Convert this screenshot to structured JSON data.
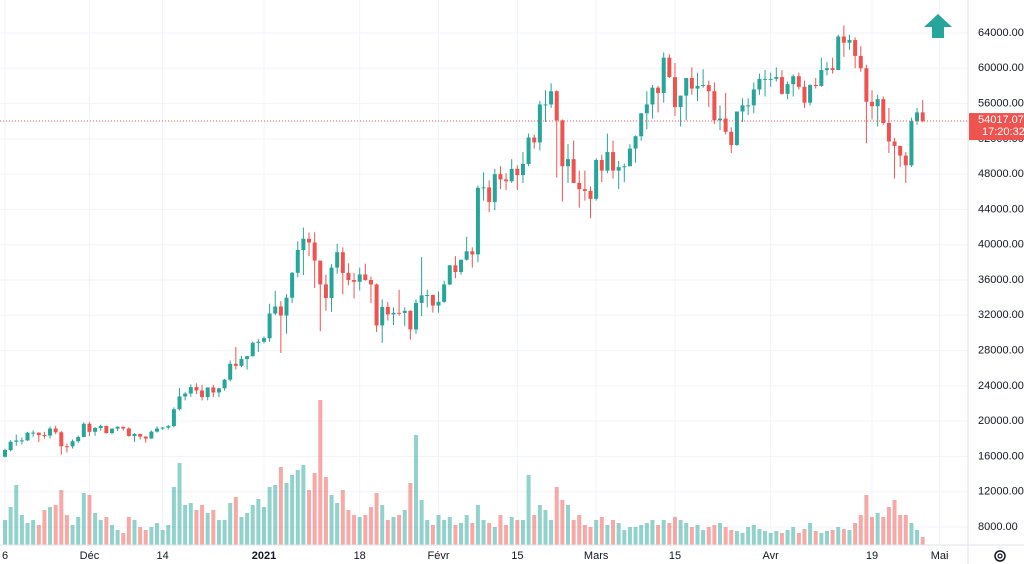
{
  "chart_data": {
    "type": "candlestick",
    "categories": [
      "6",
      null,
      null,
      null,
      null,
      null,
      null,
      null,
      null,
      null,
      null,
      null,
      null,
      null,
      null,
      "Déc",
      null,
      null,
      null,
      null,
      null,
      null,
      null,
      null,
      null,
      null,
      null,
      null,
      "14",
      null,
      null,
      null,
      null,
      null,
      null,
      null,
      null,
      null,
      null,
      null,
      null,
      null,
      null,
      null,
      null,
      null,
      "2021",
      null,
      null,
      null,
      null,
      null,
      null,
      null,
      null,
      null,
      null,
      null,
      null,
      null,
      null,
      null,
      null,
      "18",
      null,
      null,
      null,
      null,
      null,
      null,
      null,
      null,
      null,
      null,
      null,
      null,
      null,
      "Févr",
      null,
      null,
      null,
      null,
      null,
      null,
      null,
      null,
      null,
      null,
      null,
      null,
      null,
      "15",
      null,
      null,
      null,
      null,
      null,
      null,
      null,
      null,
      null,
      null,
      null,
      null,
      null,
      "Mars",
      null,
      null,
      null,
      null,
      null,
      null,
      null,
      null,
      null,
      null,
      null,
      null,
      null,
      "15",
      null,
      null,
      null,
      null,
      null,
      null,
      null,
      null,
      null,
      null,
      null,
      null,
      null,
      null,
      null,
      null,
      "Avr",
      null,
      null,
      null,
      null,
      null,
      null,
      null,
      null,
      null,
      null,
      null,
      null,
      null,
      null,
      null,
      null,
      null,
      "19",
      null,
      null,
      null,
      null,
      null,
      null,
      null,
      null,
      null,
      null,
      null,
      "Mai",
      null,
      null,
      null,
      null
    ],
    "open": [
      15960,
      16720,
      17660,
      17800,
      17820,
      18690,
      18700,
      18420,
      18370,
      19160,
      18740,
      17150,
      17140,
      17720,
      18200,
      19700,
      18790,
      19220,
      19450,
      18650,
      19150,
      19360,
      19170,
      18320,
      18550,
      18250,
      18030,
      18810,
      19160,
      19270,
      19440,
      21350,
      22800,
      23130,
      23860,
      23480,
      22730,
      23820,
      23250,
      23720,
      24700,
      26500,
      26270,
      27040,
      27360,
      28880,
      29000,
      29400,
      32200,
      33000,
      31970,
      33990,
      36820,
      39400,
      40670,
      40250,
      38200,
      35500,
      33960,
      37400,
      39150,
      36800,
      36000,
      35800,
      36630,
      36000,
      35500,
      30850,
      32950,
      32100,
      32280,
      32270,
      32500,
      30400,
      33400,
      34260,
      34300,
      33100,
      33530,
      35500,
      37660,
      36900,
      38300,
      39250,
      38900,
      46450,
      46500,
      44850,
      48000,
      47400,
      47200,
      48600,
      47900,
      49150,
      52150,
      51600,
      55900,
      55900,
      57400,
      54100,
      48900,
      49700,
      47000,
      46300,
      46100,
      45200,
      49600,
      48400,
      50500,
      48400,
      48800,
      48900,
      50900,
      52300,
      54900,
      55900,
      57800,
      57200,
      61200,
      59000,
      55600,
      56900,
      58900,
      57700,
      58000,
      58100,
      57400,
      54100,
      54300,
      52800,
      51300,
      55100,
      55800,
      55800,
      57600,
      58800,
      58800,
      58800,
      59000,
      57100,
      58200,
      59100,
      57900,
      56100,
      58100,
      58000,
      59800,
      60000,
      59800,
      63600,
      62900,
      63200,
      61400,
      60000,
      56200,
      55700,
      56500,
      53800,
      51700,
      51200,
      50100,
      49000,
      54000,
      55000,
      null,
      null,
      null,
      null,
      null,
      null,
      null
    ],
    "high": [
      16870,
      17850,
      18480,
      18150,
      18800,
      18960,
      18720,
      18790,
      19400,
      19480,
      18900,
      17470,
      17920,
      18360,
      19860,
      19920,
      19330,
      19600,
      19500,
      19170,
      19420,
      19390,
      19300,
      18640,
      18570,
      18290,
      18950,
      19410,
      19340,
      19570,
      21560,
      23770,
      23280,
      24170,
      24300,
      24100,
      23830,
      24100,
      23780,
      24800,
      26870,
      28400,
      27400,
      27390,
      29000,
      29300,
      29600,
      33300,
      34800,
      33600,
      34400,
      36900,
      40400,
      41950,
      41380,
      41400,
      38200,
      36600,
      37800,
      40100,
      39700,
      37900,
      36800,
      37400,
      37850,
      36400,
      35600,
      33800,
      33500,
      32900,
      34880,
      32900,
      32570,
      33800,
      38600,
      34900,
      34350,
      34700,
      35900,
      37700,
      38700,
      38300,
      40900,
      39700,
      46700,
      48200,
      47300,
      48600,
      48900,
      48100,
      49700,
      49000,
      50500,
      52600,
      52500,
      56300,
      57500,
      58300,
      57500,
      54200,
      51400,
      51800,
      48400,
      48400,
      46600,
      49800,
      50200,
      52600,
      51800,
      49500,
      49200,
      51400,
      52400,
      54900,
      57400,
      58100,
      58000,
      61800,
      61600,
      60600,
      56900,
      58900,
      60100,
      59500,
      59900,
      58600,
      58400,
      55800,
      57200,
      53300,
      55100,
      56600,
      56600,
      58400,
      59400,
      59800,
      59500,
      60100,
      59800,
      58500,
      59300,
      59500,
      58600,
      58200,
      58900,
      61200,
      60700,
      61200,
      63800,
      64850,
      63800,
      63500,
      62500,
      60400,
      57500,
      57000,
      56800,
      55500,
      52100,
      51200,
      50500,
      54400,
      55500,
      56400,
      null,
      null,
      null,
      null,
      null,
      null,
      null
    ],
    "low": [
      15880,
      16570,
      17220,
      17350,
      17760,
      18230,
      17620,
      18020,
      18030,
      18530,
      16200,
      16460,
      16890,
      17540,
      18180,
      18320,
      18340,
      18900,
      18580,
      18510,
      18880,
      18920,
      18230,
      17650,
      17920,
      17580,
      18010,
      18710,
      19000,
      19050,
      19300,
      21230,
      22350,
      22760,
      23080,
      22350,
      22360,
      22730,
      22720,
      23460,
      24500,
      25850,
      26100,
      25850,
      27320,
      27850,
      28800,
      29000,
      32000,
      27730,
      29900,
      33400,
      36300,
      36560,
      38700,
      35100,
      30200,
      32500,
      32400,
      36700,
      34400,
      35400,
      33900,
      34800,
      35900,
      33400,
      30100,
      28850,
      31400,
      30900,
      31950,
      30800,
      29240,
      29900,
      31900,
      32900,
      32300,
      32300,
      33400,
      35400,
      36200,
      36600,
      38200,
      37400,
      38000,
      45000,
      43700,
      43900,
      46300,
      46200,
      47000,
      46200,
      47000,
      48900,
      50900,
      50700,
      53900,
      55500,
      47600,
      44900,
      47000,
      47000,
      44200,
      45000,
      43000,
      45000,
      47100,
      48100,
      47500,
      46300,
      47100,
      48900,
      49300,
      51800,
      53100,
      54300,
      55000,
      56100,
      58900,
      54600,
      53400,
      54100,
      57000,
      56300,
      57800,
      55600,
      53700,
      53000,
      52500,
      50400,
      51200,
      53900,
      54700,
      54900,
      57000,
      56800,
      57900,
      58500,
      57000,
      56500,
      56800,
      57600,
      55500,
      55800,
      57700,
      57900,
      59200,
      59400,
      59800,
      61300,
      62100,
      60000,
      59600,
      51500,
      54200,
      53400,
      53600,
      50400,
      47500,
      48800,
      47000,
      48800,
      53600,
      53900,
      null,
      null,
      null,
      null,
      null,
      null,
      null
    ],
    "close": [
      16720,
      17660,
      17800,
      17820,
      18690,
      18700,
      18420,
      18370,
      19160,
      18740,
      17150,
      17140,
      17720,
      18200,
      19700,
      18790,
      19220,
      19450,
      18650,
      19150,
      19360,
      19170,
      18320,
      18550,
      18250,
      18030,
      18810,
      19160,
      19270,
      19440,
      21350,
      22800,
      23130,
      23860,
      23480,
      22730,
      23820,
      23250,
      23720,
      24700,
      26500,
      26270,
      27040,
      27360,
      28880,
      29000,
      29400,
      32200,
      33000,
      31970,
      33990,
      36820,
      39400,
      40670,
      40250,
      38200,
      35500,
      33960,
      37400,
      39150,
      36800,
      36000,
      35800,
      36630,
      36000,
      35500,
      30850,
      32950,
      32100,
      32280,
      32270,
      32500,
      30400,
      33400,
      34260,
      34300,
      33100,
      33530,
      35500,
      37660,
      36900,
      38300,
      39250,
      38900,
      46450,
      46500,
      44850,
      48000,
      47400,
      47200,
      48600,
      47900,
      49150,
      52150,
      51600,
      55900,
      55900,
      57400,
      54100,
      48900,
      49700,
      47000,
      46300,
      46100,
      45200,
      49600,
      48400,
      50500,
      48400,
      48800,
      48900,
      50900,
      52300,
      54900,
      55900,
      57800,
      57200,
      61200,
      59000,
      55600,
      56900,
      58900,
      57700,
      58000,
      58100,
      57400,
      54100,
      54300,
      52800,
      51300,
      55100,
      55800,
      55800,
      57600,
      58800,
      58800,
      58800,
      59000,
      57100,
      58200,
      59100,
      57900,
      56100,
      58100,
      58000,
      59800,
      60000,
      59800,
      63600,
      62900,
      63200,
      61400,
      60000,
      56200,
      55700,
      56500,
      53800,
      51700,
      51200,
      50100,
      49000,
      54000,
      55000,
      54017.07,
      null,
      null,
      null,
      null,
      null,
      null,
      null
    ],
    "volume": [
      25,
      38,
      60,
      30,
      22,
      25,
      20,
      35,
      38,
      40,
      55,
      30,
      20,
      28,
      52,
      50,
      32,
      25,
      28,
      20,
      15,
      12,
      28,
      25,
      18,
      15,
      18,
      22,
      15,
      20,
      58,
      82,
      40,
      42,
      35,
      40,
      32,
      35,
      25,
      25,
      42,
      48,
      28,
      32,
      40,
      46,
      38,
      58,
      60,
      78,
      62,
      70,
      75,
      80,
      55,
      72,
      145,
      68,
      50,
      42,
      55,
      35,
      30,
      28,
      30,
      38,
      52,
      40,
      25,
      28,
      30,
      35,
      62,
      110,
      45,
      25,
      20,
      30,
      25,
      28,
      20,
      22,
      30,
      22,
      40,
      25,
      22,
      18,
      30,
      20,
      28,
      25,
      25,
      70,
      30,
      40,
      35,
      25,
      58,
      45,
      40,
      25,
      30,
      20,
      18,
      25,
      28,
      20,
      25,
      22,
      15,
      18,
      18,
      20,
      22,
      25,
      20,
      25,
      22,
      28,
      25,
      22,
      18,
      20,
      15,
      18,
      20,
      22,
      18,
      15,
      14,
      12,
      18,
      20,
      16,
      14,
      12,
      14,
      12,
      15,
      18,
      12,
      16,
      22,
      14,
      12,
      14,
      15,
      18,
      16,
      15,
      22,
      30,
      50,
      28,
      32,
      28,
      38,
      45,
      30,
      30,
      22,
      15,
      8,
      null,
      null,
      null,
      null,
      null,
      null,
      null
    ],
    "up_color": "#26a69a",
    "down_color": "#ef5350",
    "ylim": [
      5960,
      67740
    ],
    "yticks": [
      {
        "value": 8000,
        "label": "8000.00"
      },
      {
        "value": 12000,
        "label": "12000.00"
      },
      {
        "value": 16000,
        "label": "16000.00"
      },
      {
        "value": 20000,
        "label": "20000.00"
      },
      {
        "value": 24000,
        "label": "24000.00"
      },
      {
        "value": 28000,
        "label": "28000.00"
      },
      {
        "value": 32000,
        "label": "32000.00"
      },
      {
        "value": 36000,
        "label": "36000.00"
      },
      {
        "value": 40000,
        "label": "40000.00"
      },
      {
        "value": 44000,
        "label": "44000.00"
      },
      {
        "value": 48000,
        "label": "48000.00"
      },
      {
        "value": 52000,
        "label": "52000.00"
      },
      {
        "value": 56000,
        "label": "56000.00"
      },
      {
        "value": 60000,
        "label": "60000.00"
      },
      {
        "value": 64000,
        "label": "64000.00"
      }
    ],
    "vlim": [
      0,
      160
    ],
    "grid": true,
    "countdown": "17:20:32"
  }
}
